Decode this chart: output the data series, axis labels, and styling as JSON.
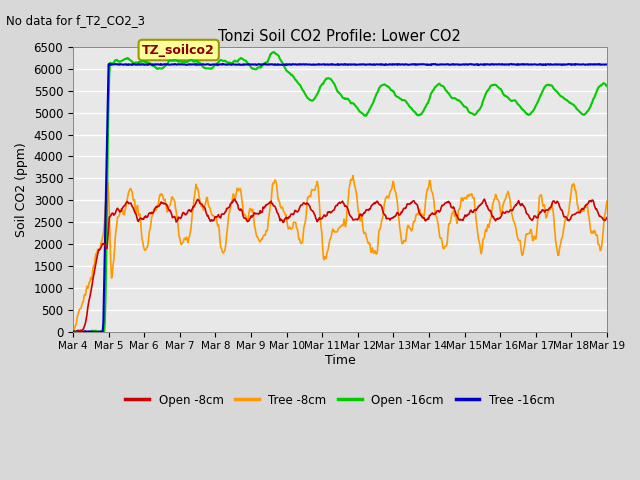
{
  "title": "Tonzi Soil CO2 Profile: Lower CO2",
  "no_data_text": "No data for f_T2_CO2_3",
  "ylabel": "Soil CO2 (ppm)",
  "xlabel": "Time",
  "ylim": [
    0,
    6500
  ],
  "yticks": [
    0,
    500,
    1000,
    1500,
    2000,
    2500,
    3000,
    3500,
    4000,
    4500,
    5000,
    5500,
    6000,
    6500
  ],
  "xtick_labels": [
    "Mar 4",
    "Mar 5",
    "Mar 6",
    "Mar 7",
    "Mar 8",
    "Mar 9",
    "Mar 10",
    "Mar 11",
    "Mar 12",
    "Mar 13",
    "Mar 14",
    "Mar 15",
    "Mar 16",
    "Mar 17",
    "Mar 18",
    "Mar 19"
  ],
  "fig_bg_color": "#d8d8d8",
  "plot_bg_color": "#e8e8e8",
  "legend_box_text": "TZ_soilco2",
  "colors": {
    "open_8cm": "#cc0000",
    "tree_8cm": "#ff9900",
    "open_16cm": "#00cc00",
    "tree_16cm": "#0000cc"
  },
  "legend_labels": [
    "Open -8cm",
    "Tree -8cm",
    "Open -16cm",
    "Tree -16cm"
  ]
}
